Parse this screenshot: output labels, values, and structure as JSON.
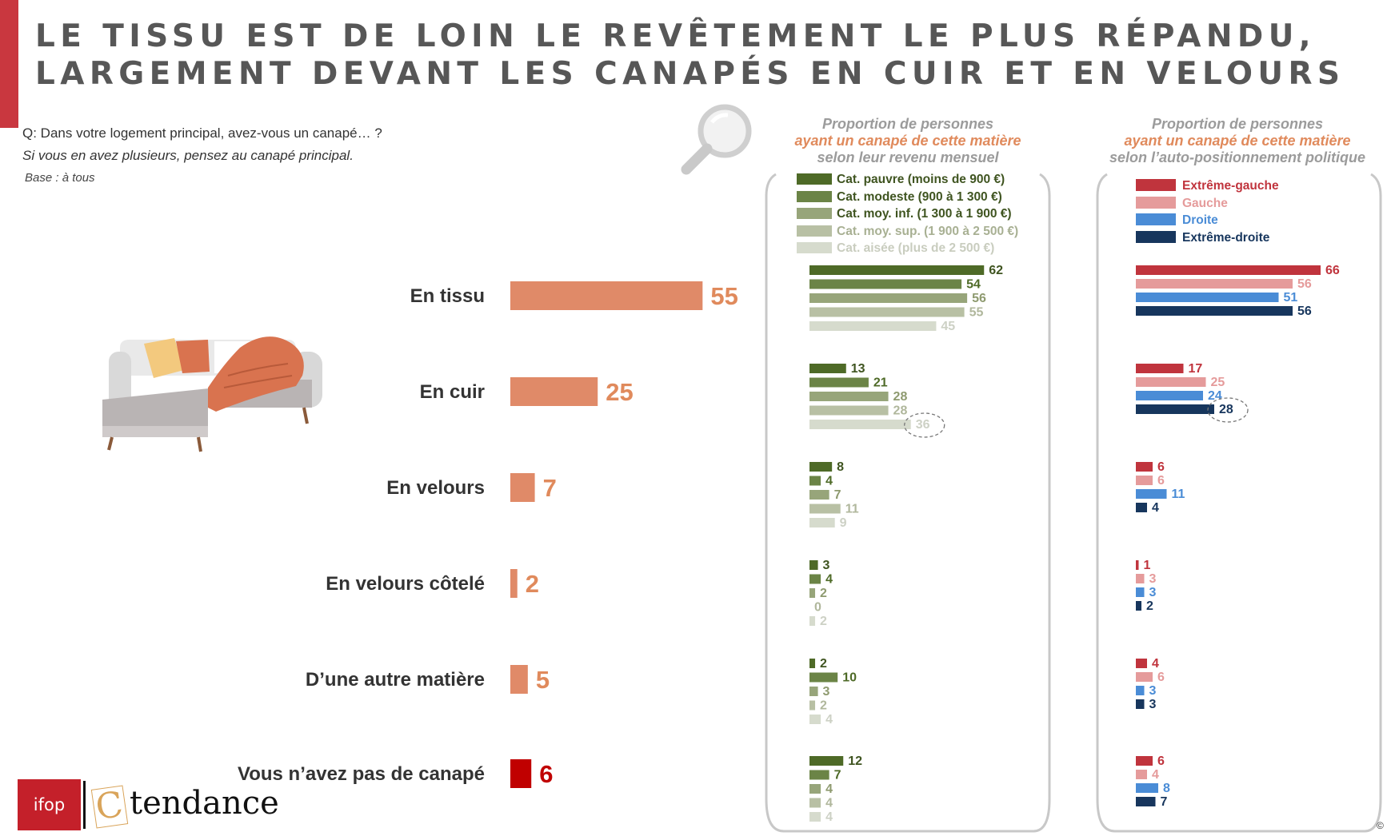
{
  "title": {
    "line1": "LE TISSU EST DE LOIN LE REVÊTEMENT LE PLUS RÉPANDU,",
    "line2": "LARGEMENT DEVANT LES CANAPÉS EN CUIR ET EN VELOURS"
  },
  "question": {
    "q": "Q: Dans votre logement principal, avez-vous un canapé… ?",
    "note": "Si vous en avez plusieurs, pensez au canapé principal.",
    "base": "Base : à tous"
  },
  "footer": {
    "ifop": "ifop",
    "c_letter": "C",
    "brand": "tendance",
    "copyright": "©"
  },
  "colors": {
    "accent": "#c9373f",
    "main_bar": "#e08a68",
    "main_value": "#e08a5c",
    "no_sofa_bar": "#c00000",
    "income": [
      "#4e6a27",
      "#6b8446",
      "#97a57a",
      "#b8c0a4",
      "#d6dbcd"
    ],
    "politics": [
      "#c0343d",
      "#e59b9b",
      "#4a8cd6",
      "#17365d"
    ]
  },
  "icons": {
    "magnifier": "magnifier-icon",
    "sofa": "sofa-illustration"
  },
  "chart_data": [
    {
      "type": "bar",
      "orientation": "horizontal",
      "categories": [
        "En tissu",
        "En cuir",
        "En velours",
        "En velours côtelé",
        "D’une autre matière",
        "Vous n’avez pas de canapé"
      ],
      "values": [
        55,
        25,
        7,
        2,
        5,
        6
      ]
    },
    {
      "type": "bar",
      "orientation": "horizontal",
      "title_lines": [
        "Proportion de personnes",
        "ayant un canapé de cette matière",
        "selon leur revenu mensuel"
      ],
      "categories": [
        "En tissu",
        "En cuir",
        "En velours",
        "En velours côtelé",
        "D’une autre matière",
        "Vous n’avez pas de canapé"
      ],
      "series": [
        {
          "name": "Cat. pauvre (moins de 900 €)",
          "values": [
            62,
            13,
            8,
            3,
            2,
            12
          ]
        },
        {
          "name": "Cat. modeste (900 à 1 300 €)",
          "values": [
            54,
            21,
            4,
            4,
            10,
            7
          ]
        },
        {
          "name": "Cat. moy. inf. (1 300 à 1 900 €)",
          "values": [
            56,
            28,
            7,
            2,
            3,
            4
          ]
        },
        {
          "name": "Cat. moy. sup. (1 900 à 2 500 €)",
          "values": [
            55,
            28,
            11,
            0,
            2,
            4
          ]
        },
        {
          "name": "Cat. aisée (plus de 2 500 €)",
          "values": [
            45,
            36,
            9,
            2,
            4,
            4
          ]
        }
      ],
      "highlight": {
        "category_index": 1,
        "series_index": 4
      }
    },
    {
      "type": "bar",
      "orientation": "horizontal",
      "title_lines": [
        "Proportion de personnes",
        "ayant un canapé de cette matière",
        "selon l’auto-positionnement politique"
      ],
      "categories": [
        "En tissu",
        "En cuir",
        "En velours",
        "En velours côtelé",
        "D’une autre matière",
        "Vous n’avez pas de canapé"
      ],
      "series": [
        {
          "name": "Extrême-gauche",
          "values": [
            66,
            17,
            6,
            1,
            4,
            6
          ]
        },
        {
          "name": "Gauche",
          "values": [
            56,
            25,
            6,
            3,
            6,
            4
          ]
        },
        {
          "name": "Droite",
          "values": [
            51,
            24,
            11,
            3,
            3,
            8
          ]
        },
        {
          "name": "Extrême-droite",
          "values": [
            56,
            28,
            4,
            2,
            3,
            7
          ]
        }
      ],
      "highlight": {
        "category_index": 1,
        "series_index": 3
      }
    }
  ]
}
